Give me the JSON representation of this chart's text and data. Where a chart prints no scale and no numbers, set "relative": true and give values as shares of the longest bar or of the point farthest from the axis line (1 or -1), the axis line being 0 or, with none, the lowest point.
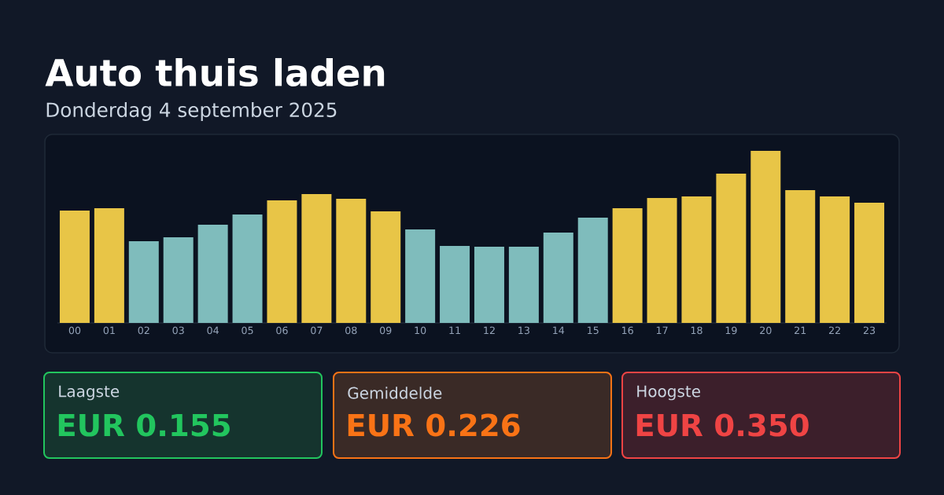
{
  "chart_data": {
    "type": "bar",
    "title": "Auto thuis laden",
    "subtitle": "Donderdag 4 september 2025",
    "relative": true,
    "categories": [
      "00",
      "01",
      "02",
      "03",
      "04",
      "05",
      "06",
      "07",
      "08",
      "09",
      "10",
      "11",
      "12",
      "13",
      "14",
      "15",
      "16",
      "17",
      "18",
      "19",
      "20",
      "21",
      "22",
      "23"
    ],
    "values": [
      0.653,
      0.667,
      0.475,
      0.498,
      0.571,
      0.63,
      0.712,
      0.749,
      0.721,
      0.648,
      0.543,
      0.447,
      0.443,
      0.443,
      0.525,
      0.612,
      0.667,
      0.726,
      0.735,
      0.868,
      1,
      0.772,
      0.735,
      0.699
    ],
    "colors": [
      "#e8c547",
      "#e8c547",
      "#7fbcbc",
      "#7fbcbc",
      "#7fbcbc",
      "#7fbcbc",
      "#e8c547",
      "#e8c547",
      "#e8c547",
      "#e8c547",
      "#7fbcbc",
      "#7fbcbc",
      "#7fbcbc",
      "#7fbcbc",
      "#7fbcbc",
      "#7fbcbc",
      "#e8c547",
      "#e8c547",
      "#e8c547",
      "#e8c547",
      "#e8c547",
      "#e8c547",
      "#e8c547",
      "#e8c547"
    ],
    "annotations": [
      "Laagste",
      "EUR 0.155",
      "Gemiddelde",
      "EUR 0.226",
      "Hoogste",
      "EUR 0.350"
    ]
  }
}
